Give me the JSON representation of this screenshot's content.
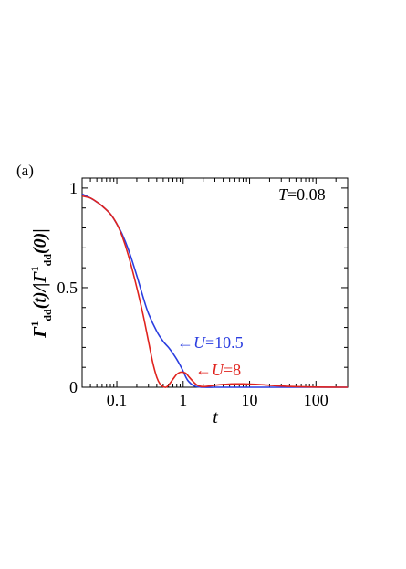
{
  "panel_label": "(a)",
  "chart_data": {
    "type": "line",
    "x_scale": "log",
    "xlim": [
      0.03,
      300
    ],
    "ylim": [
      0,
      1.05
    ],
    "grid": false,
    "xlabel": "t",
    "ylabel": "Γ¹dd(t)/|Γ¹dd(0)|",
    "x_ticks": [
      {
        "value": 0.1,
        "label": "0.1"
      },
      {
        "value": 1,
        "label": "1"
      },
      {
        "value": 10,
        "label": "10"
      },
      {
        "value": 100,
        "label": "100"
      }
    ],
    "y_ticks": [
      {
        "value": 0,
        "label": "0"
      },
      {
        "value": 0.5,
        "label": "0.5"
      },
      {
        "value": 1,
        "label": "1"
      }
    ],
    "annotations": {
      "temperature": {
        "var": "T",
        "text": "=0.08"
      },
      "series_labels": [
        {
          "arrow": "←",
          "var": "U",
          "text": "=10.5",
          "color": "#2b3ee0"
        },
        {
          "arrow": "←",
          "var": "U",
          "text": "=8",
          "color": "#e0231e"
        }
      ]
    },
    "series": [
      {
        "color": "#2b3ee0",
        "x": [
          0.03,
          0.04,
          0.05,
          0.06,
          0.08,
          0.1,
          0.12,
          0.15,
          0.2,
          0.25,
          0.3,
          0.4,
          0.5,
          0.6,
          0.7,
          0.8,
          0.9,
          1.0,
          1.1,
          1.2,
          1.4,
          1.6,
          2,
          3,
          5,
          10,
          30,
          100,
          300
        ],
        "y": [
          0.97,
          0.95,
          0.93,
          0.91,
          0.87,
          0.82,
          0.77,
          0.69,
          0.56,
          0.45,
          0.37,
          0.28,
          0.23,
          0.2,
          0.17,
          0.14,
          0.11,
          0.08,
          0.05,
          0.03,
          0.01,
          0.003,
          0.0,
          0.0,
          0.0,
          0.0,
          0.0,
          0.0,
          0.0
        ]
      },
      {
        "color": "#e0231e",
        "x": [
          0.03,
          0.04,
          0.05,
          0.06,
          0.08,
          0.1,
          0.12,
          0.15,
          0.2,
          0.25,
          0.3,
          0.35,
          0.4,
          0.45,
          0.5,
          0.55,
          0.6,
          0.7,
          0.8,
          0.9,
          1.0,
          1.1,
          1.2,
          1.4,
          1.6,
          1.8,
          2,
          2.5,
          3,
          4,
          5,
          6,
          8,
          10,
          15,
          20,
          30,
          50,
          100,
          300
        ],
        "y": [
          0.96,
          0.95,
          0.93,
          0.91,
          0.87,
          0.82,
          0.76,
          0.66,
          0.5,
          0.36,
          0.23,
          0.12,
          0.05,
          0.015,
          0.003,
          0.0,
          0.01,
          0.04,
          0.065,
          0.075,
          0.075,
          0.07,
          0.055,
          0.03,
          0.012,
          0.005,
          0.003,
          0.006,
          0.01,
          0.014,
          0.016,
          0.017,
          0.017,
          0.016,
          0.013,
          0.01,
          0.006,
          0.003,
          0.001,
          0.0
        ]
      }
    ]
  }
}
